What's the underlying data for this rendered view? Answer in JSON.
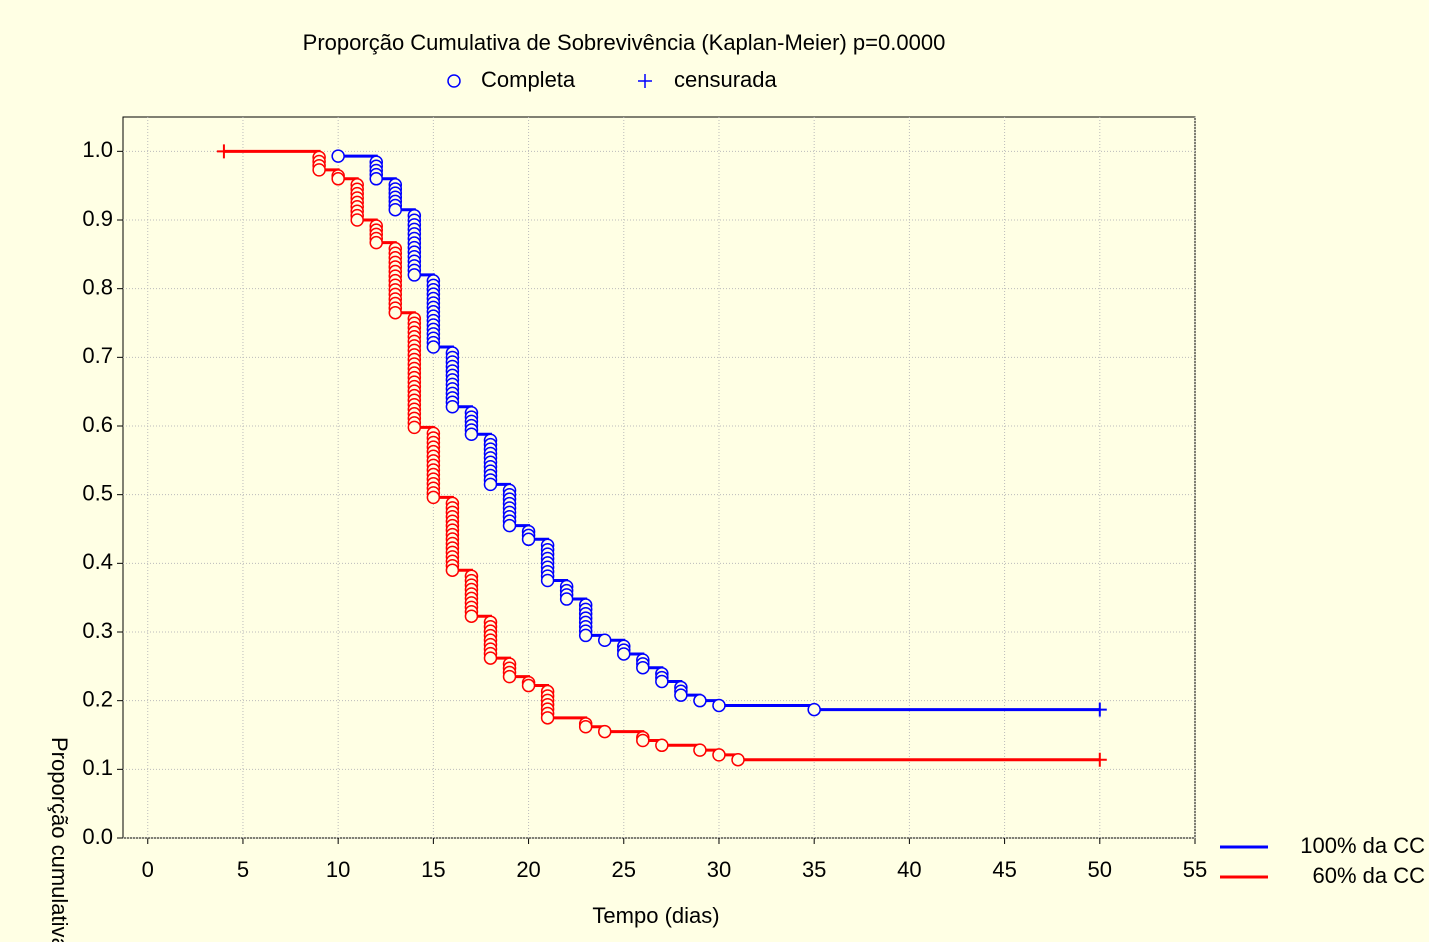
{
  "chart_data": {
    "type": "kaplan-meier",
    "title": "Proporção Cumulativa de Sobrevivência (Kaplan-Meier) p=0.0000",
    "marker_legend": [
      "Completa",
      "censurada"
    ],
    "xlabel": "Tempo (dias)",
    "ylabel": "Proporção cumulativa",
    "xlim": [
      -1.3,
      55
    ],
    "xticks": [
      0,
      5,
      10,
      15,
      20,
      25,
      30,
      35,
      40,
      45,
      50,
      55
    ],
    "ylim": [
      0,
      1.05
    ],
    "yticks": [
      {
        "value": 0,
        "label": "0.0"
      },
      0.1,
      0.2,
      0.3,
      0.4,
      0.5,
      0.6,
      0.7,
      0.8,
      0.9,
      {
        "value": 1,
        "label": "1.0"
      }
    ],
    "grid": true,
    "series": [
      {
        "name": "100% da CC",
        "color": "#0000ff",
        "x": [
          10,
          12,
          13,
          14,
          15,
          16,
          17,
          18,
          19,
          20,
          21,
          22,
          23,
          24,
          25,
          26,
          27,
          28,
          29,
          30,
          35
        ],
        "values": [
          0.993,
          0.96,
          0.915,
          0.82,
          0.715,
          0.628,
          0.588,
          0.515,
          0.455,
          0.435,
          0.375,
          0.348,
          0.295,
          0.288,
          0.268,
          0.248,
          0.228,
          0.208,
          0.2,
          0.193,
          0.187
        ],
        "censored_x": [
          50
        ],
        "censored_values": [
          0.187
        ]
      },
      {
        "name": "60% da CC",
        "color": "#ff0000",
        "x": [
          9,
          10,
          11,
          12,
          13,
          14,
          15,
          16,
          17,
          18,
          19,
          20,
          21,
          23,
          24,
          26,
          27,
          29,
          30,
          31
        ],
        "values": [
          0.973,
          0.96,
          0.9,
          0.867,
          0.765,
          0.598,
          0.496,
          0.39,
          0.323,
          0.262,
          0.235,
          0.222,
          0.175,
          0.162,
          0.155,
          0.142,
          0.135,
          0.128,
          0.121,
          0.114
        ],
        "censored_x": [
          4,
          50
        ],
        "censored_values": [
          1,
          0.114
        ]
      }
    ]
  }
}
